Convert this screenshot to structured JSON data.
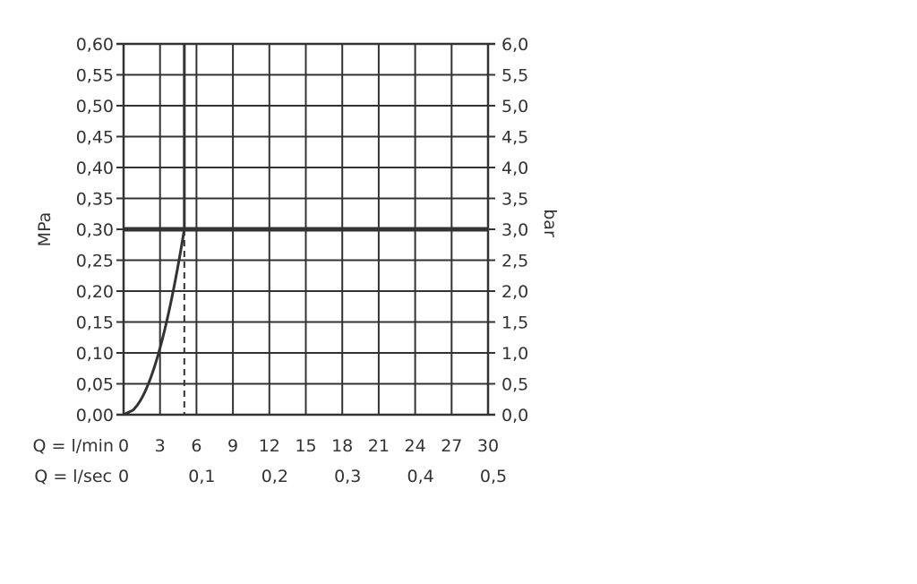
{
  "chart_data": {
    "type": "line",
    "title": "",
    "y_left_label": "MPa",
    "y_right_label": "bar",
    "x_label_lmin": "Q = l/min",
    "x_label_lsec": "Q = l/sec",
    "xlim": [
      0,
      30
    ],
    "ylim": [
      0,
      0.6
    ],
    "grid": true,
    "x_ticks_lmin": [
      "0",
      "3",
      "6",
      "9",
      "12",
      "15",
      "18",
      "21",
      "24",
      "27",
      "30"
    ],
    "x_ticks_lsec": [
      "0",
      "0,1",
      "0,2",
      "0,3",
      "0,4",
      "0,5"
    ],
    "y_ticks_left": [
      "0,00",
      "0,05",
      "0,10",
      "0,15",
      "0,20",
      "0,25",
      "0,30",
      "0,35",
      "0,40",
      "0,45",
      "0,50",
      "0,55",
      "0,60"
    ],
    "y_ticks_right": [
      "0,0",
      "0,5",
      "1,0",
      "1,5",
      "2,0",
      "2,5",
      "3,0",
      "3,5",
      "4,0",
      "4,5",
      "5,0",
      "5,5",
      "6,0"
    ],
    "reference_pressure_mpa": 0.3,
    "reference_flow_lmin": 5,
    "series": [
      {
        "points": [
          [
            0,
            0
          ],
          [
            1.29,
            0.02
          ],
          [
            2.04,
            0.05
          ],
          [
            2.89,
            0.1
          ],
          [
            3.54,
            0.15
          ],
          [
            4.08,
            0.2
          ],
          [
            4.56,
            0.25
          ],
          [
            5,
            0.3
          ],
          [
            5,
            0.6
          ]
        ]
      }
    ],
    "colors": {
      "ink": "#333333"
    }
  }
}
